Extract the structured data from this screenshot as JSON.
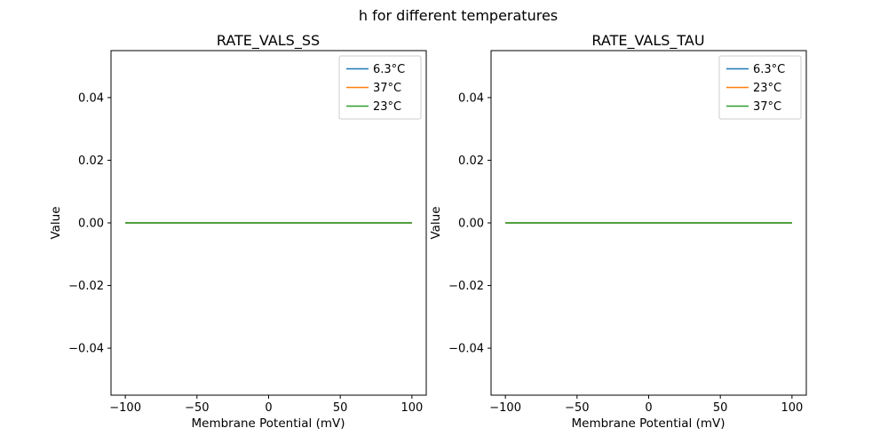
{
  "figure": {
    "title": "h for different temperatures"
  },
  "chart_data": [
    {
      "type": "line",
      "title": "RATE_VALS_SS",
      "xlabel": "Membrane Potential (mV)",
      "ylabel": "Value",
      "xlim": [
        -110,
        110
      ],
      "ylim": [
        -0.055,
        0.055
      ],
      "xticks": [
        -100,
        -50,
        0,
        50,
        100
      ],
      "xtick_labels": [
        "−100",
        "−50",
        "0",
        "50",
        "100"
      ],
      "yticks": [
        -0.04,
        -0.02,
        0,
        0.02,
        0.04
      ],
      "ytick_labels": [
        "−0.04",
        "−0.02",
        "0.00",
        "0.02",
        "0.04"
      ],
      "x": [
        -100,
        -50,
        0,
        50,
        100
      ],
      "series": [
        {
          "name": "6.3°C",
          "color": "#1f77b4",
          "values": [
            0,
            0,
            0,
            0,
            0
          ]
        },
        {
          "name": "37°C",
          "color": "#ff7f0e",
          "values": [
            0,
            0,
            0,
            0,
            0
          ]
        },
        {
          "name": "23°C",
          "color": "#2ca02c",
          "values": [
            0,
            0,
            0,
            0,
            0
          ]
        }
      ],
      "legend_position": "upper right",
      "grid": false
    },
    {
      "type": "line",
      "title": "RATE_VALS_TAU",
      "xlabel": "Membrane Potential (mV)",
      "ylabel": "Value",
      "xlim": [
        -110,
        110
      ],
      "ylim": [
        -0.055,
        0.055
      ],
      "xticks": [
        -100,
        -50,
        0,
        50,
        100
      ],
      "xtick_labels": [
        "−100",
        "−50",
        "0",
        "50",
        "100"
      ],
      "yticks": [
        -0.04,
        -0.02,
        0,
        0.02,
        0.04
      ],
      "ytick_labels": [
        "−0.04",
        "−0.02",
        "0.00",
        "0.02",
        "0.04"
      ],
      "x": [
        -100,
        -50,
        0,
        50,
        100
      ],
      "series": [
        {
          "name": "6.3°C",
          "color": "#1f77b4",
          "values": [
            0,
            0,
            0,
            0,
            0
          ]
        },
        {
          "name": "23°C",
          "color": "#ff7f0e",
          "values": [
            0,
            0,
            0,
            0,
            0
          ]
        },
        {
          "name": "37°C",
          "color": "#2ca02c",
          "values": [
            0,
            0,
            0,
            0,
            0
          ]
        }
      ],
      "legend_position": "upper right",
      "grid": false
    }
  ]
}
